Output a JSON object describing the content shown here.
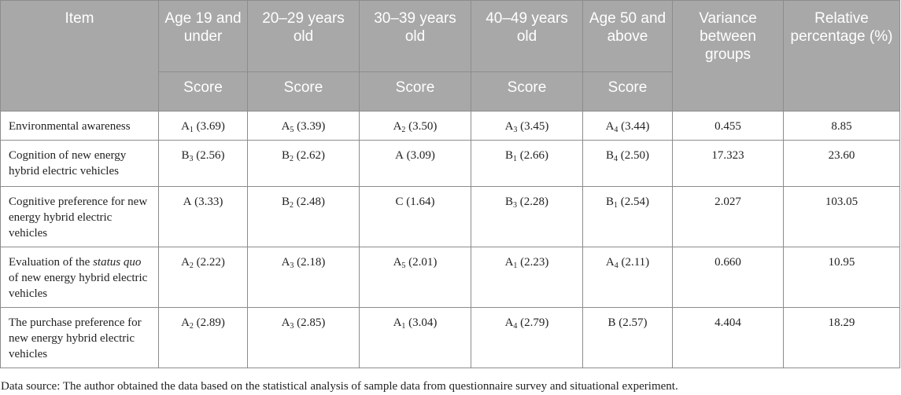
{
  "header": {
    "item": "Item",
    "groups": [
      "Age 19 and under",
      "20–29 years old",
      "30–39 years old",
      "40–49 years old",
      "Age 50 and above"
    ],
    "score_label": "Score",
    "variance": "Variance between groups",
    "relative": "Relative percentage (%)"
  },
  "rows": [
    {
      "label": "Environmental awareness",
      "cells": [
        {
          "letter": "A",
          "sub": "1",
          "score": "(3.69)"
        },
        {
          "letter": "A",
          "sub": "5",
          "score": "(3.39)"
        },
        {
          "letter": "A",
          "sub": "2",
          "score": "(3.50)"
        },
        {
          "letter": "A",
          "sub": "3",
          "score": "(3.45)"
        },
        {
          "letter": "A",
          "sub": "4",
          "score": "(3.44)"
        }
      ],
      "variance": "0.455",
      "relative": "8.85"
    },
    {
      "label": "Cognition of new energy hybrid electric vehicles",
      "cells": [
        {
          "letter": "B",
          "sub": "3",
          "score": "(2.56)"
        },
        {
          "letter": "B",
          "sub": "2",
          "score": "(2.62)"
        },
        {
          "letter": "A",
          "sub": "",
          "score": "(3.09)"
        },
        {
          "letter": "B",
          "sub": "1",
          "score": "(2.66)"
        },
        {
          "letter": "B",
          "sub": "4",
          "score": "(2.50)"
        }
      ],
      "variance": "17.323",
      "relative": "23.60"
    },
    {
      "label": "Cognitive preference for new energy hybrid electric vehicles",
      "cells": [
        {
          "letter": "A",
          "sub": "",
          "score": "(3.33)"
        },
        {
          "letter": "B",
          "sub": "2",
          "score": "(2.48)"
        },
        {
          "letter": "C",
          "sub": "",
          "score": "(1.64)"
        },
        {
          "letter": "B",
          "sub": "3",
          "score": "(2.28)"
        },
        {
          "letter": "B",
          "sub": "1",
          "score": "(2.54)"
        }
      ],
      "variance": "2.027",
      "relative": "103.05"
    },
    {
      "label_before": "Evaluation of the ",
      "label_italic": "status quo",
      "label_after": " of new energy hybrid electric vehicles",
      "cells": [
        {
          "letter": "A",
          "sub": "2",
          "score": "(2.22)"
        },
        {
          "letter": "A",
          "sub": "3",
          "score": "(2.18)"
        },
        {
          "letter": "A",
          "sub": "5",
          "score": "(2.01)"
        },
        {
          "letter": "A",
          "sub": "1",
          "score": "(2.23)"
        },
        {
          "letter": "A",
          "sub": "4",
          "score": "(2.11)"
        }
      ],
      "variance": "0.660",
      "relative": "10.95"
    },
    {
      "label": "The purchase preference for new energy hybrid electric vehicles",
      "cells": [
        {
          "letter": "A",
          "sub": "2",
          "score": "(2.89)"
        },
        {
          "letter": "A",
          "sub": "3",
          "score": "(2.85)"
        },
        {
          "letter": "A",
          "sub": "1",
          "score": "(3.04)"
        },
        {
          "letter": "A",
          "sub": "4",
          "score": "(2.79)"
        },
        {
          "letter": "B",
          "sub": "",
          "score": "(2.57)"
        }
      ],
      "variance": "4.404",
      "relative": "18.29"
    }
  ],
  "footnote": "Data source: The author obtained the data based on the statistical analysis of sample data from questionnaire survey and situational experiment."
}
